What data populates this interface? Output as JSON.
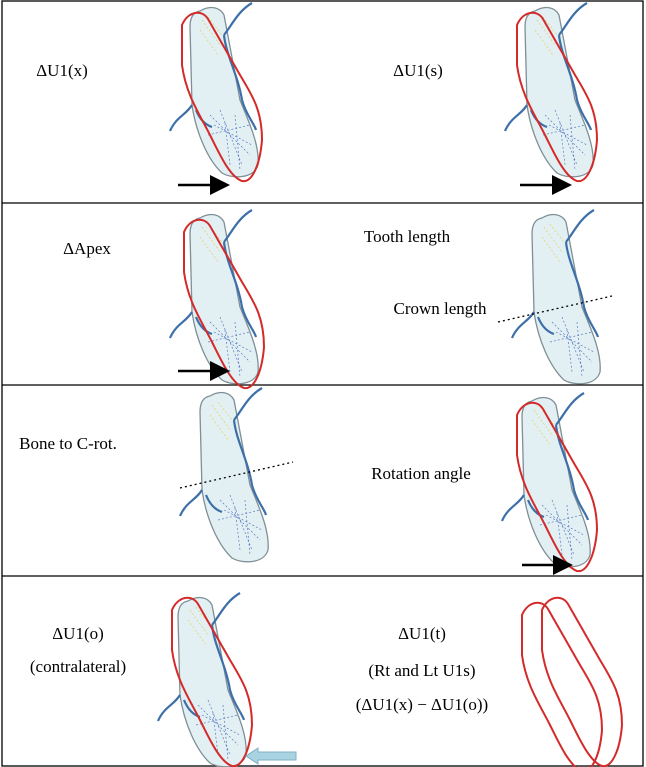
{
  "rows": [
    {
      "left": "ΔU1(x)",
      "right": "ΔU1(s)"
    },
    {
      "left": "ΔApex",
      "right_top": "Tooth length",
      "right_bottom": "Crown length"
    },
    {
      "left": "Bone to C-rot.",
      "right": "Rotation angle"
    },
    {
      "left_top": "ΔU1(o)",
      "left_bottom": "(contralateral)",
      "right_lines": [
        "ΔU1(t)",
        "(Rt and Lt U1s)",
        "(ΔU1(x) − ΔU1(o))"
      ]
    }
  ]
}
